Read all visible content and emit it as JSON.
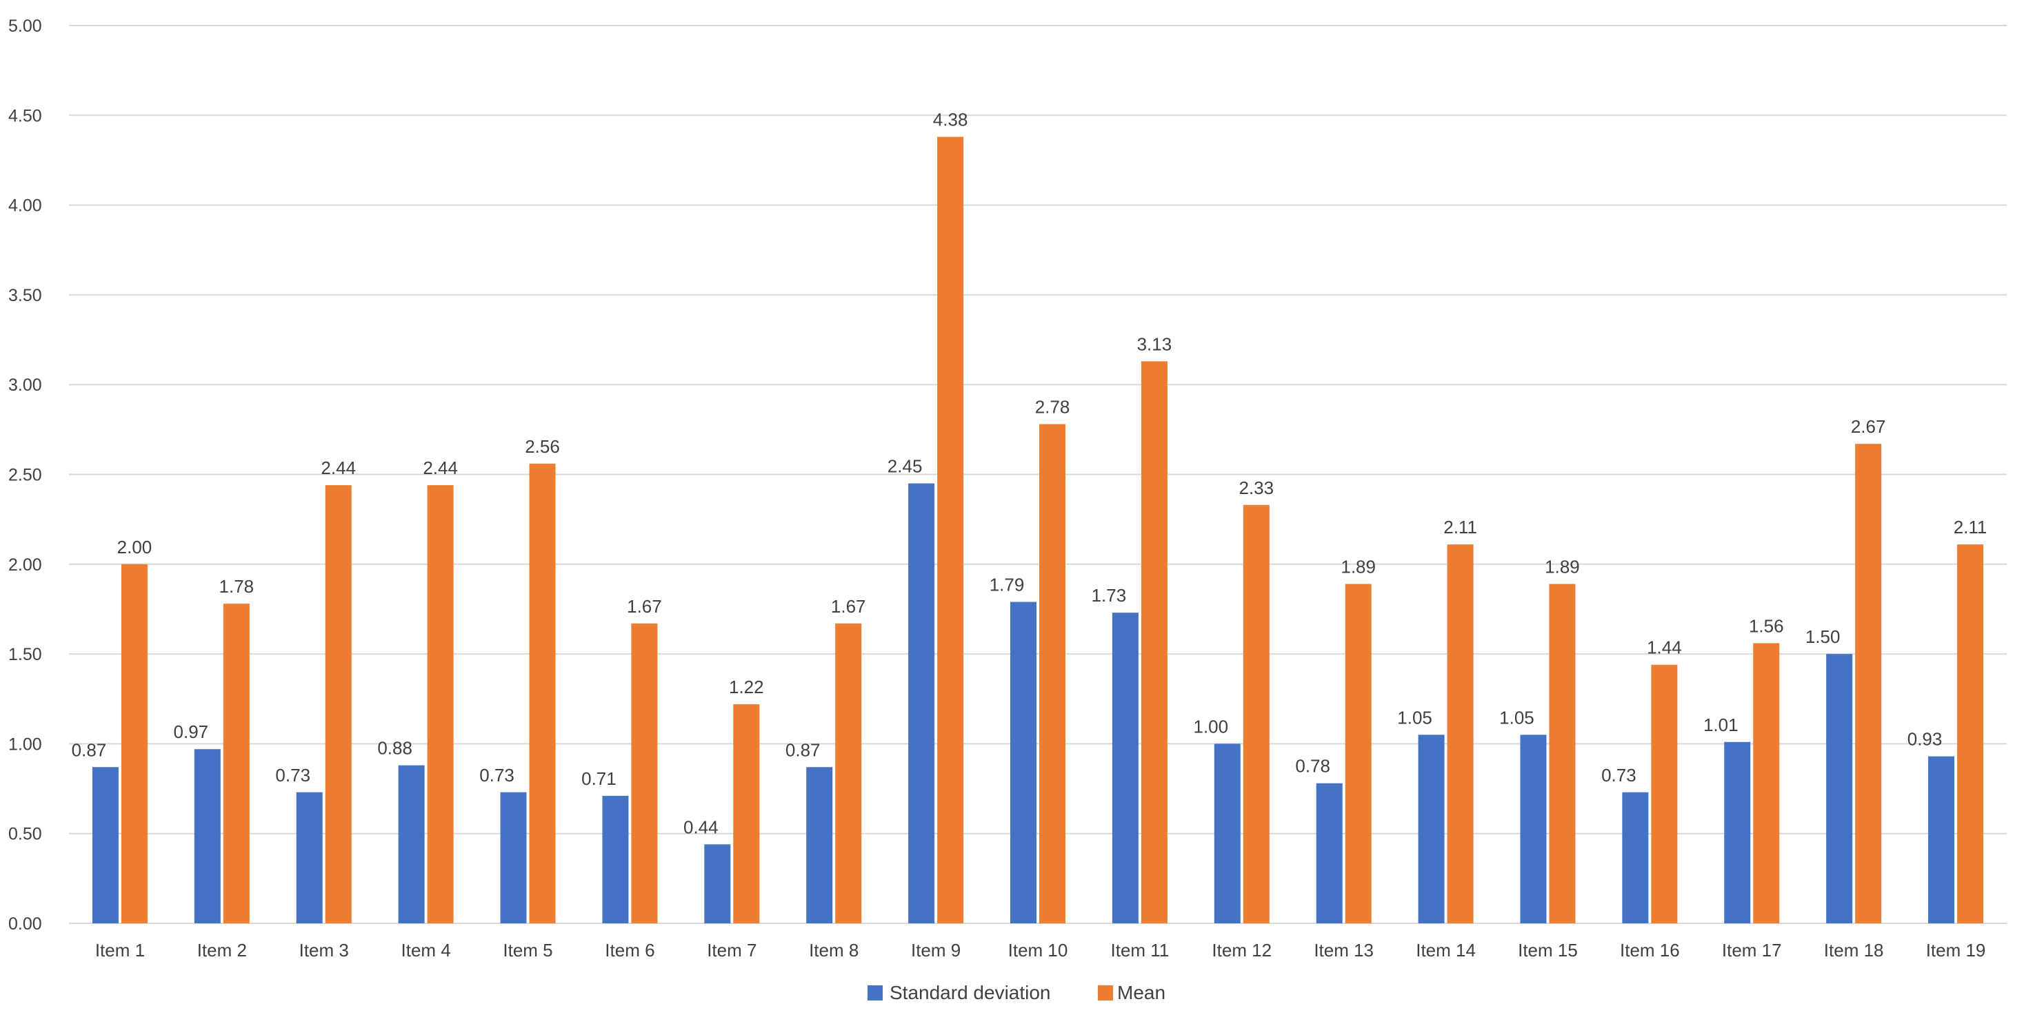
{
  "chart_data": {
    "type": "bar",
    "title": "",
    "xlabel": "",
    "ylabel": "",
    "ylim": [
      0,
      5
    ],
    "yticks": [
      "0.00",
      "0.50",
      "1.00",
      "1.50",
      "2.00",
      "2.50",
      "3.00",
      "3.50",
      "4.00",
      "4.50",
      "5.00"
    ],
    "grid": true,
    "legend_position": "bottom",
    "categories": [
      "Item 1",
      "Item 2",
      "Item 3",
      "Item 4",
      "Item 5",
      "Item 6",
      "Item 7",
      "Item 8",
      "Item 9",
      "Item 10",
      "Item 11",
      "Item 12",
      "Item 13",
      "Item 14",
      "Item 15",
      "Item 16",
      "Item 17",
      "Item 18",
      "Item 19"
    ],
    "series": [
      {
        "name": "Standard deviation",
        "color": "#4472C4",
        "values": [
          0.87,
          0.97,
          0.73,
          0.88,
          0.73,
          0.71,
          0.44,
          0.87,
          2.45,
          1.79,
          1.73,
          1.0,
          0.78,
          1.05,
          1.05,
          0.73,
          1.01,
          1.5,
          0.93
        ],
        "labels": [
          "0.87",
          "0.97",
          "0.73",
          "0.88",
          "0.73",
          "0.71",
          "0.44",
          "0.87",
          "2.45",
          "1.79",
          "1.73",
          "1.00",
          "0.78",
          "1.05",
          "1.05",
          "0.73",
          "1.01",
          "1.50",
          "0.93"
        ]
      },
      {
        "name": "Mean",
        "color": "#ED7D31",
        "values": [
          2.0,
          1.78,
          2.44,
          2.44,
          2.56,
          1.67,
          1.22,
          1.67,
          4.38,
          2.78,
          3.13,
          2.33,
          1.89,
          2.11,
          1.89,
          1.44,
          1.56,
          2.67,
          2.11
        ],
        "labels": [
          "2.00",
          "1.78",
          "2.44",
          "2.44",
          "2.56",
          "1.67",
          "1.22",
          "1.67",
          "4.38",
          "2.78",
          "3.13",
          "2.33",
          "1.89",
          "2.11",
          "1.89",
          "1.44",
          "1.56",
          "2.67",
          "2.11"
        ]
      }
    ]
  }
}
